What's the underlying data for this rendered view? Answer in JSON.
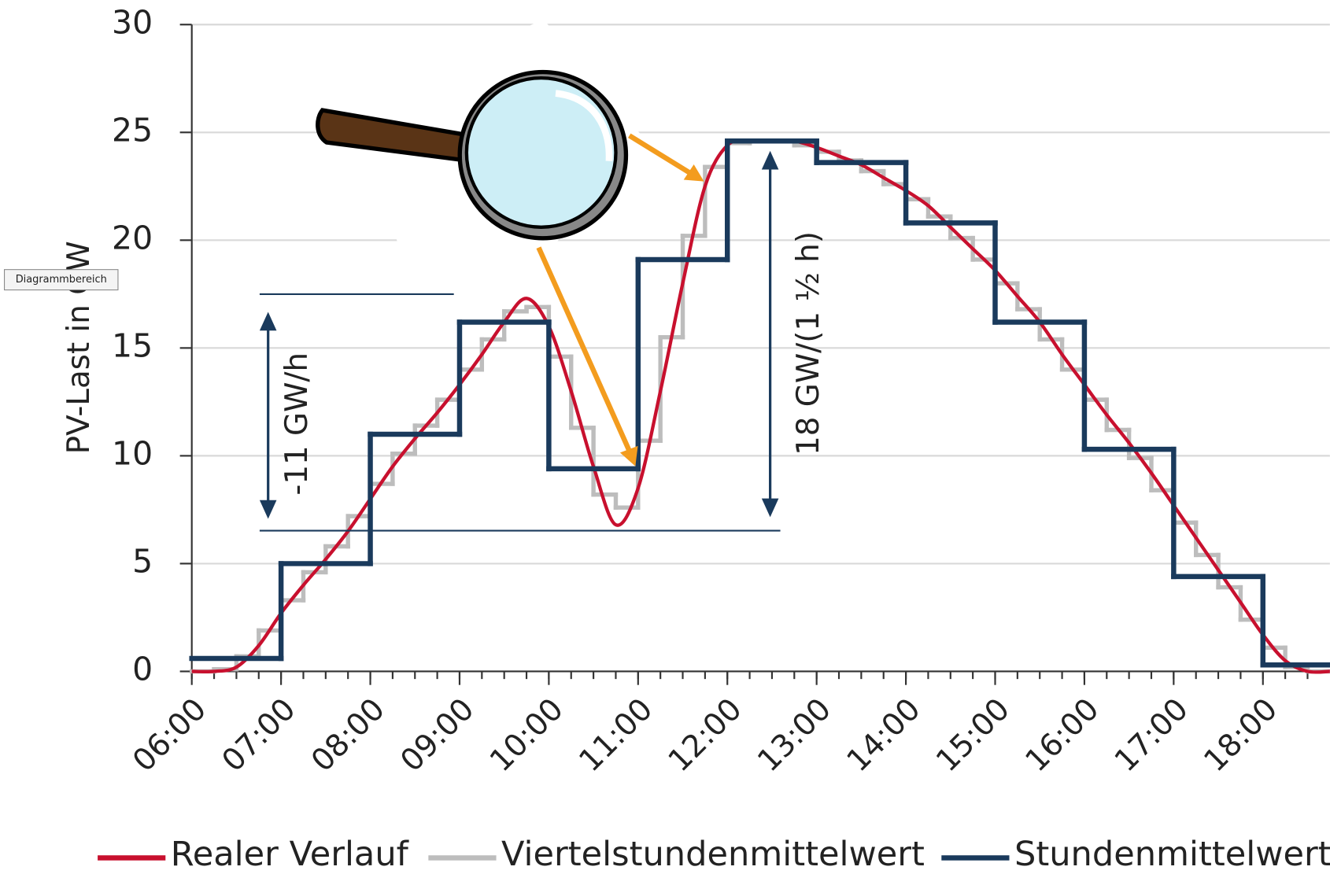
{
  "chart_data": {
    "type": "line",
    "y_label": "PV-Last in GW",
    "xlim": [
      6,
      18.75
    ],
    "ylim": [
      0,
      30
    ],
    "xticks": [
      {
        "value": 6,
        "label": "06:00"
      },
      {
        "value": 7,
        "label": "07:00"
      },
      {
        "value": 8,
        "label": "08:00"
      },
      {
        "value": 9,
        "label": "09:00"
      },
      {
        "value": 10,
        "label": "10:00"
      },
      {
        "value": 11,
        "label": "11:00"
      },
      {
        "value": 12,
        "label": "12:00"
      },
      {
        "value": 13,
        "label": "13:00"
      },
      {
        "value": 14,
        "label": "14:00"
      },
      {
        "value": 15,
        "label": "15:00"
      },
      {
        "value": 16,
        "label": "16:00"
      },
      {
        "value": 17,
        "label": "17:00"
      },
      {
        "value": 18,
        "label": "18:00"
      }
    ],
    "yticks": [
      0,
      5,
      10,
      15,
      20,
      25,
      30
    ],
    "grid": true,
    "legend": "bottom",
    "annotations": [
      "-11 GW/h",
      "18 GW/(1 ½ h)"
    ],
    "series": [
      {
        "name": "Realer Verlauf",
        "color": "#c8102e",
        "step": false,
        "x": [
          6,
          6.25,
          6.5,
          6.75,
          7,
          7.25,
          7.5,
          7.75,
          8,
          8.25,
          8.5,
          8.75,
          9,
          9.25,
          9.5,
          9.75,
          10,
          10.25,
          10.5,
          10.75,
          11,
          11.25,
          11.5,
          11.75,
          12,
          12.25,
          12.5,
          12.75,
          13,
          13.25,
          13.5,
          13.75,
          14,
          14.25,
          14.5,
          14.75,
          15,
          15.25,
          15.5,
          15.75,
          16,
          16.25,
          16.5,
          16.75,
          17,
          17.25,
          17.5,
          17.75,
          18,
          18.25,
          18.5,
          18.75
        ],
        "values": [
          0,
          0,
          0.2,
          1.2,
          2.7,
          4,
          5.2,
          6.5,
          8,
          9.5,
          10.8,
          12,
          13.3,
          14.7,
          16.2,
          17.3,
          16,
          13,
          9.5,
          6.8,
          8.5,
          13,
          18,
          22.5,
          24.4,
          24.6,
          24.6,
          24.6,
          24.3,
          23.9,
          23.5,
          22.9,
          22.3,
          21.6,
          20.6,
          19.6,
          18.6,
          17.4,
          16.2,
          14.7,
          13.3,
          11.9,
          10.6,
          9.2,
          7.7,
          6.2,
          4.7,
          3.2,
          1.7,
          0.5,
          0,
          0
        ]
      },
      {
        "name": "Viertelstundenmittelwert",
        "color": "#bdbdbd",
        "step": true,
        "x": [
          6,
          6.25,
          6.5,
          6.75,
          7,
          7.25,
          7.5,
          7.75,
          8,
          8.25,
          8.5,
          8.75,
          9,
          9.25,
          9.5,
          9.75,
          10,
          10.25,
          10.5,
          10.75,
          11,
          11.25,
          11.5,
          11.75,
          12,
          12.25,
          12.5,
          12.75,
          13,
          13.25,
          13.5,
          13.75,
          14,
          14.25,
          14.5,
          14.75,
          15,
          15.25,
          15.5,
          15.75,
          16,
          16.25,
          16.5,
          16.75,
          17,
          17.25,
          17.5,
          17.75,
          18,
          18.25,
          18.5
        ],
        "values": [
          0,
          0.1,
          0.7,
          1.9,
          3.3,
          4.6,
          5.8,
          7.2,
          8.7,
          10.1,
          11.4,
          12.6,
          14,
          15.4,
          16.7,
          16.9,
          14.6,
          11.3,
          8.2,
          7.6,
          10.7,
          15.5,
          20.2,
          23.4,
          24.5,
          24.6,
          24.6,
          24.4,
          24.1,
          23.7,
          23.2,
          22.6,
          21.9,
          21.1,
          20.1,
          19.1,
          18,
          16.8,
          15.4,
          14,
          12.6,
          11.2,
          9.9,
          8.4,
          6.9,
          5.4,
          3.9,
          2.4,
          1.1,
          0.2,
          0
        ]
      },
      {
        "name": "Stundenmittelwert",
        "color": "#1a3a5c",
        "step": true,
        "x": [
          6,
          7,
          8,
          9,
          10,
          11,
          12,
          13,
          14,
          15,
          16,
          17,
          18
        ],
        "values": [
          0.6,
          5,
          11,
          16.2,
          9.4,
          19.1,
          24.6,
          23.6,
          20.8,
          16.2,
          10.3,
          4.4,
          0.3
        ]
      }
    ]
  },
  "tooltip": "Diagrammbereich"
}
